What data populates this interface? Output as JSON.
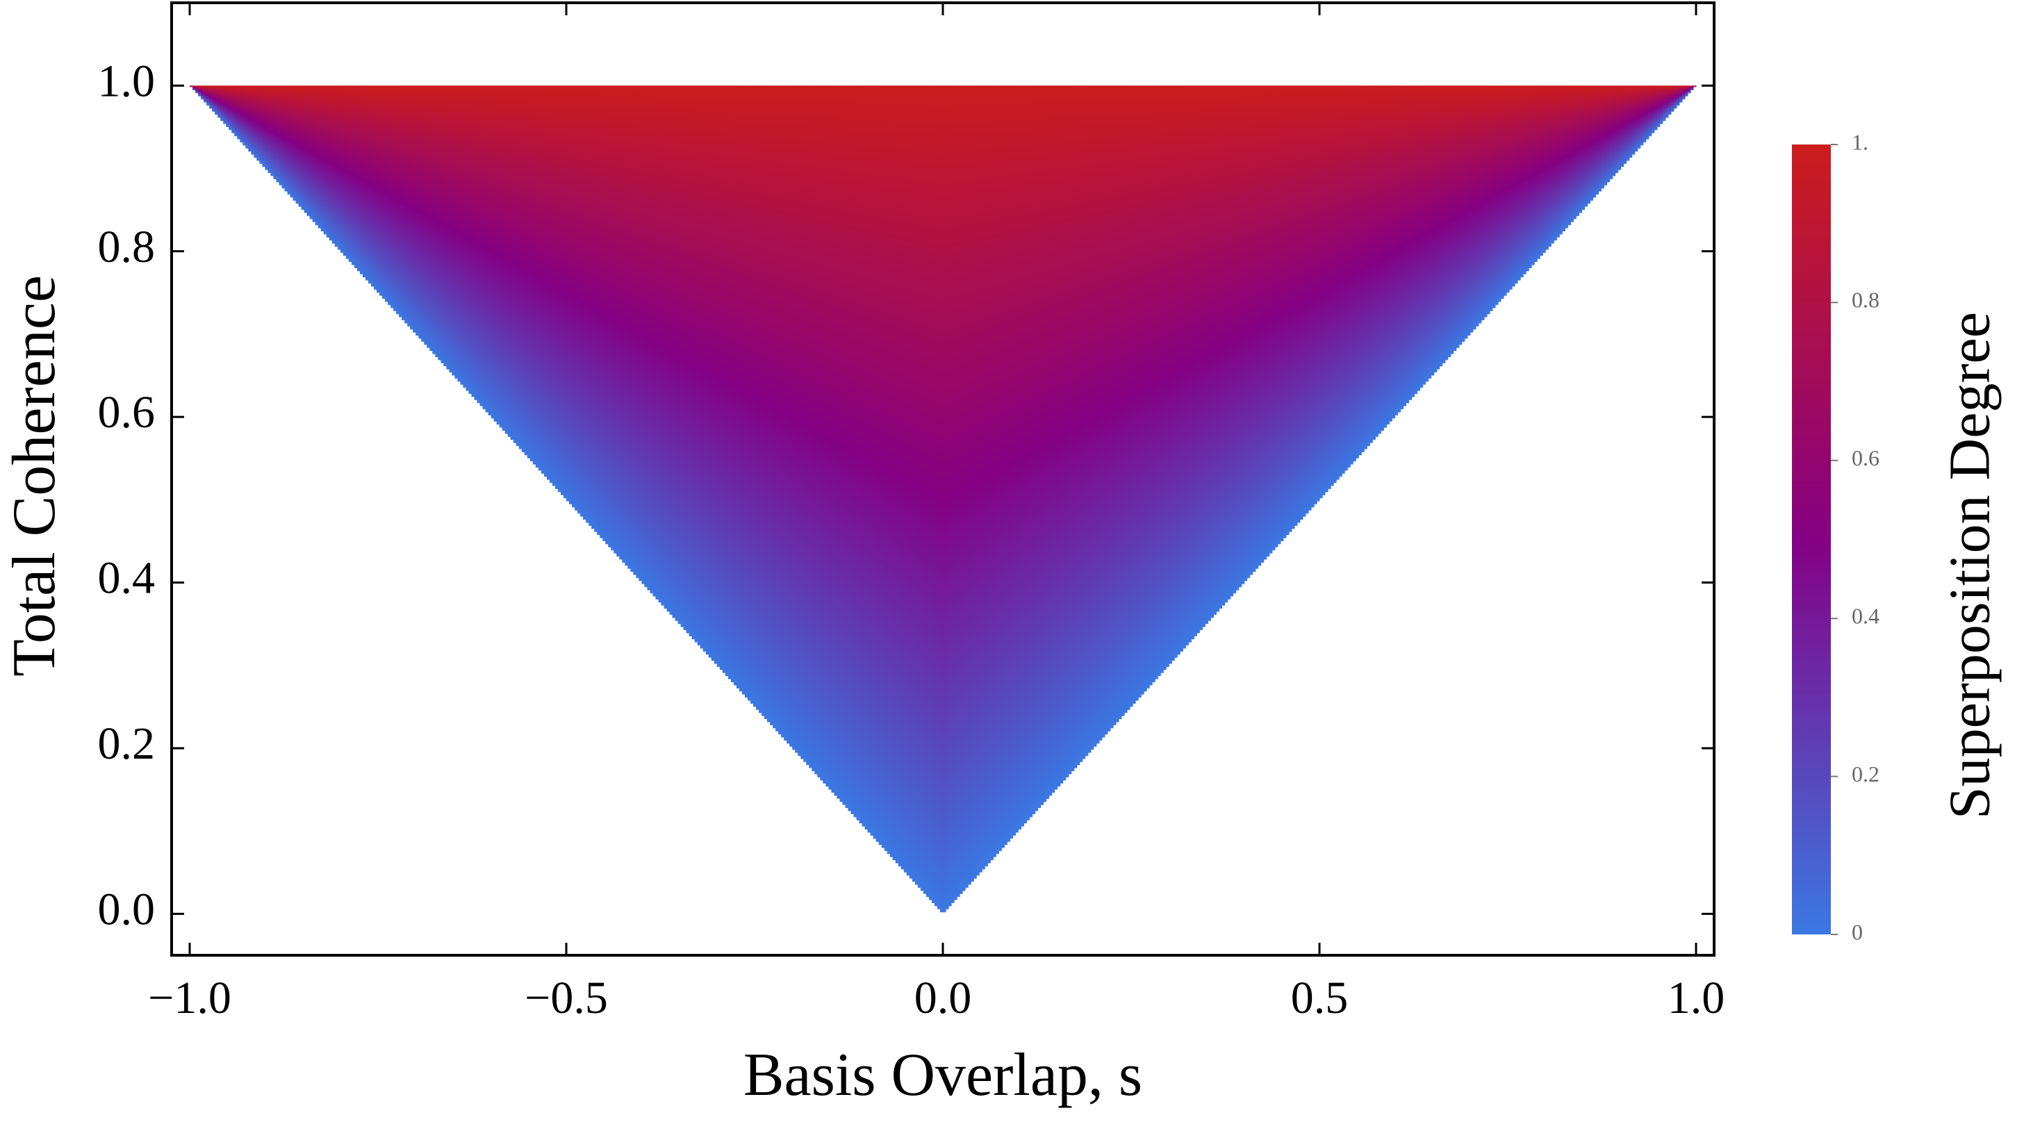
{
  "chart_data": {
    "type": "density",
    "x_label": "Basis Overlap, s",
    "y_label": "Total Coherence",
    "region": {
      "x": [
        -1,
        0,
        1
      ],
      "y": [
        1,
        0,
        1
      ]
    },
    "xlim": [
      -1.024,
      1.024
    ],
    "ylim": [
      -0.05,
      1.1
    ],
    "xticks": [
      {
        "value": -1,
        "label": "−1.0"
      },
      {
        "value": -0.5,
        "label": "−0.5"
      },
      {
        "value": 0,
        "label": "0.0"
      },
      {
        "value": 0.5,
        "label": "0.5"
      },
      {
        "value": 1,
        "label": "1.0"
      }
    ],
    "yticks": [
      {
        "value": 0,
        "label": "0.0"
      },
      {
        "value": 0.2,
        "label": "0.2"
      },
      {
        "value": 0.4,
        "label": "0.4"
      },
      {
        "value": 0.6,
        "label": "0.6"
      },
      {
        "value": 0.8,
        "label": "0.8"
      },
      {
        "value": 1,
        "label": "1.0"
      }
    ],
    "colorbar": {
      "label": "Superposition Degree",
      "clim": [
        0,
        1
      ],
      "ticks": [
        0,
        0.2,
        0.4,
        0.6,
        0.8,
        {
          "value": 1,
          "label": "1."
        }
      ],
      "colormap": [
        {
          "value": 0,
          "color": "#3b78e3"
        },
        {
          "value": 0.5,
          "color": "#850084"
        },
        {
          "value": 1,
          "color": "#cc1c1c"
        }
      ]
    }
  }
}
